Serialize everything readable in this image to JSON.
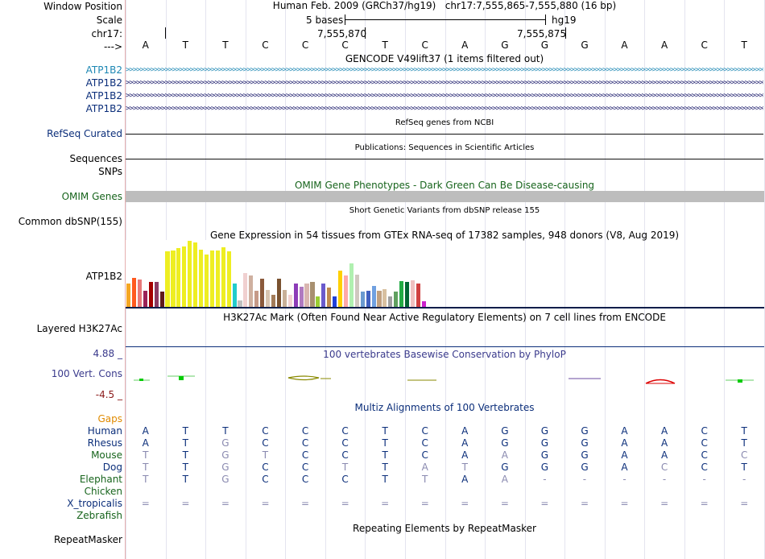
{
  "header": {
    "window_position_label": "Window Position",
    "scale_label": "Scale",
    "chrom_label": "chr17:",
    "arrow_label": "--->",
    "assembly": "Human Feb. 2009 (GRCh37/hg19)",
    "position": "chr17:7,555,865-7,555,880 (16 bp)",
    "scale_text": "5 bases",
    "scale_db": "hg19",
    "coord_1": "7,555,870",
    "coord_2": "7,555,875"
  },
  "bases": [
    "A",
    "T",
    "T",
    "C",
    "C",
    "C",
    "T",
    "C",
    "A",
    "G",
    "G",
    "G",
    "A",
    "A",
    "C",
    "T"
  ],
  "tracks": {
    "gencode_title": "GENCODE V49lift37 (1 items filtered out)",
    "gencode_genes": [
      "ATP1B2",
      "ATP1B2",
      "ATP1B2",
      "ATP1B2"
    ],
    "refseq_label": "RefSeq Curated",
    "refseq_title": "RefSeq genes from NCBI",
    "sequences_label": "Sequences",
    "publications_title": "Publications: Sequences in Scientific Articles",
    "snps_label": "SNPs",
    "omim_title": "OMIM Gene Phenotypes - Dark Green Can Be Disease-causing",
    "omim_label": "OMIM Genes",
    "dbsnp_label": "Common dbSNP(155)",
    "dbsnp_title": "Short Genetic Variants from dbSNP release 155",
    "gtex_title": "Gene Expression in 54 tissues from GTEx RNA-seq of 17382 samples, 948 donors (V8, Aug 2019)",
    "gtex_label": "ATP1B2",
    "h3k27ac_label": "Layered H3K27Ac",
    "h3k27ac_title": "H3K27Ac Mark (Often Found Near Active Regulatory Elements) on 7 cell lines from ENCODE",
    "cons_max": "4.88 _",
    "cons_label": "100 Vert. Cons",
    "cons_min": "-4.5 _",
    "cons_title": "100 vertebrates Basewise Conservation by PhyloP",
    "multiz_title": "Multiz Alignments of 100 Vertebrates",
    "gaps_label": "Gaps",
    "repeat_title": "Repeating Elements by RepeatMasker",
    "repeat_label": "RepeatMasker"
  },
  "gtex_values": [
    30,
    37,
    35,
    21,
    32,
    32,
    20,
    70,
    71,
    74,
    76,
    83,
    81,
    72,
    66,
    71,
    71,
    75,
    70,
    30,
    9,
    43,
    40,
    21,
    36,
    22,
    16,
    36,
    22,
    16,
    30,
    26,
    30,
    32,
    14,
    30,
    25,
    14,
    46,
    40,
    55,
    41,
    20,
    21,
    27,
    21,
    23,
    14,
    20,
    33,
    32,
    34,
    30,
    8
  ],
  "gtex_colors": [
    "#f5a623",
    "#ff5a1f",
    "#e87a7a",
    "#9b2257",
    "#a40000",
    "#8b3a62",
    "#5e1a1a",
    "#eeee22",
    "#eeee22",
    "#eeee22",
    "#eeee22",
    "#eeee22",
    "#eeee22",
    "#eeee22",
    "#eeee22",
    "#eeee22",
    "#eeee22",
    "#eeee22",
    "#eeee22",
    "#22cccc",
    "#bfbfbf",
    "#f0d0d0",
    "#cfb0a0",
    "#c59a88",
    "#8b5a3c",
    "#d8c4b0",
    "#a37c5a",
    "#7a5230",
    "#c8b098",
    "#f2d2d2",
    "#8d3cb8",
    "#b07ac0",
    "#d9b6b0",
    "#a89070",
    "#9acd32",
    "#6a5acd",
    "#c08a50",
    "#1f3fd9",
    "#ffd000",
    "#ffa8a8",
    "#b0f0b0",
    "#d0c8c0",
    "#6a9ad0",
    "#4060c0",
    "#70a0e0",
    "#c0a080",
    "#d8c0a0",
    "#a0a0a0",
    "#60a060",
    "#22aa44",
    "#006633",
    "#f0c0c0",
    "#d04040",
    "#cc22cc"
  ],
  "alignments": [
    {
      "species": "Human",
      "color": "#0b2e7a",
      "row": [
        "A",
        "T",
        "T",
        "C",
        "C",
        "C",
        "T",
        "C",
        "A",
        "G",
        "G",
        "G",
        "A",
        "A",
        "C",
        "T"
      ],
      "dim": [
        0,
        0,
        0,
        0,
        0,
        0,
        0,
        0,
        0,
        0,
        0,
        0,
        0,
        0,
        0,
        0
      ]
    },
    {
      "species": "Rhesus",
      "color": "#0b2e7a",
      "row": [
        "A",
        "T",
        "G",
        "C",
        "C",
        "C",
        "T",
        "C",
        "A",
        "G",
        "G",
        "G",
        "A",
        "A",
        "C",
        "T"
      ],
      "dim": [
        0,
        0,
        1,
        0,
        0,
        0,
        0,
        0,
        0,
        0,
        0,
        0,
        0,
        0,
        0,
        0
      ]
    },
    {
      "species": "Mouse",
      "color": "#17641c",
      "row": [
        "T",
        "T",
        "G",
        "T",
        "C",
        "C",
        "T",
        "C",
        "A",
        "A",
        "G",
        "G",
        "A",
        "A",
        "C",
        "C"
      ],
      "dim": [
        1,
        0,
        1,
        1,
        0,
        0,
        0,
        0,
        0,
        1,
        0,
        0,
        0,
        0,
        0,
        1
      ]
    },
    {
      "species": "Dog",
      "color": "#0b2e7a",
      "row": [
        "T",
        "T",
        "G",
        "C",
        "C",
        "T",
        "T",
        "A",
        "T",
        "G",
        "G",
        "G",
        "A",
        "C",
        "C",
        "T"
      ],
      "dim": [
        1,
        0,
        1,
        0,
        0,
        1,
        0,
        1,
        1,
        0,
        0,
        0,
        0,
        1,
        0,
        0
      ]
    },
    {
      "species": "Elephant",
      "color": "#17641c",
      "row": [
        "T",
        "T",
        "G",
        "C",
        "C",
        "C",
        "T",
        "T",
        "A",
        "A",
        "-",
        "-",
        "-",
        "-",
        "-",
        "-"
      ],
      "dim": [
        1,
        0,
        1,
        0,
        0,
        0,
        0,
        1,
        0,
        1,
        1,
        1,
        1,
        1,
        1,
        1
      ]
    },
    {
      "species": "Chicken",
      "color": "#17641c",
      "row": [
        "",
        "",
        "",
        "",
        "",
        "",
        "",
        "",
        "",
        "",
        "",
        "",
        "",
        "",
        "",
        ""
      ],
      "dim": [
        0,
        0,
        0,
        0,
        0,
        0,
        0,
        0,
        0,
        0,
        0,
        0,
        0,
        0,
        0,
        0
      ]
    },
    {
      "species": "X_tropicalis",
      "color": "#0b2e7a",
      "row": [
        "=",
        "=",
        "=",
        "=",
        "=",
        "=",
        "=",
        "=",
        "=",
        "=",
        "=",
        "=",
        "=",
        "=",
        "=",
        "="
      ],
      "dim": [
        1,
        1,
        1,
        1,
        1,
        1,
        1,
        1,
        1,
        1,
        1,
        1,
        1,
        1,
        1,
        1
      ]
    },
    {
      "species": "Zebrafish",
      "color": "#17641c",
      "row": [
        "",
        "",
        "",
        "",
        "",
        "",
        "",
        "",
        "",
        "",
        "",
        "",
        "",
        "",
        "",
        ""
      ],
      "dim": [
        0,
        0,
        0,
        0,
        0,
        0,
        0,
        0,
        0,
        0,
        0,
        0,
        0,
        0,
        0,
        0
      ]
    }
  ]
}
